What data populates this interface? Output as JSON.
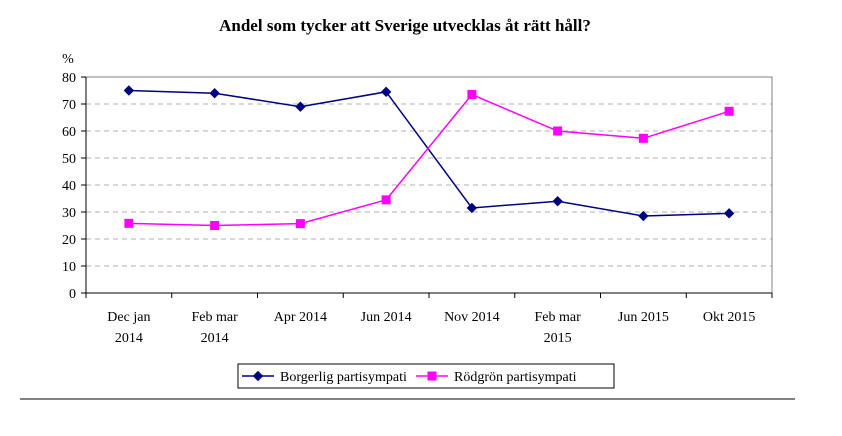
{
  "chart_data": {
    "type": "line",
    "title": "Andel som tycker att Sverige utvecklas åt rätt håll?",
    "ylabel": "%",
    "xlabel": "",
    "ylim": [
      0,
      80
    ],
    "yticks": [
      "0",
      "10",
      "20",
      "30",
      "40",
      "50",
      "60",
      "70",
      "80"
    ],
    "grid": true,
    "legend_position": "bottom",
    "categories": [
      [
        "Dec jan",
        "2014"
      ],
      [
        "Feb mar",
        "2014"
      ],
      [
        "Apr 2014"
      ],
      [
        "Jun 2014"
      ],
      [
        "Nov 2014"
      ],
      [
        "Feb mar",
        "2015"
      ],
      [
        "Jun 2015"
      ],
      [
        "Okt 2015"
      ]
    ],
    "series": [
      {
        "name": "Borgerlig partisympati",
        "color": "#000080",
        "marker": "diamond",
        "values": [
          75,
          74,
          69,
          74.5,
          31.5,
          34,
          28.5,
          29.5
        ]
      },
      {
        "name": "Rödgrön partisympati",
        "color": "#ff00ff",
        "marker": "square",
        "values": [
          25.8,
          25,
          25.7,
          34.5,
          73.5,
          60,
          57.3,
          67.3
        ]
      }
    ]
  }
}
